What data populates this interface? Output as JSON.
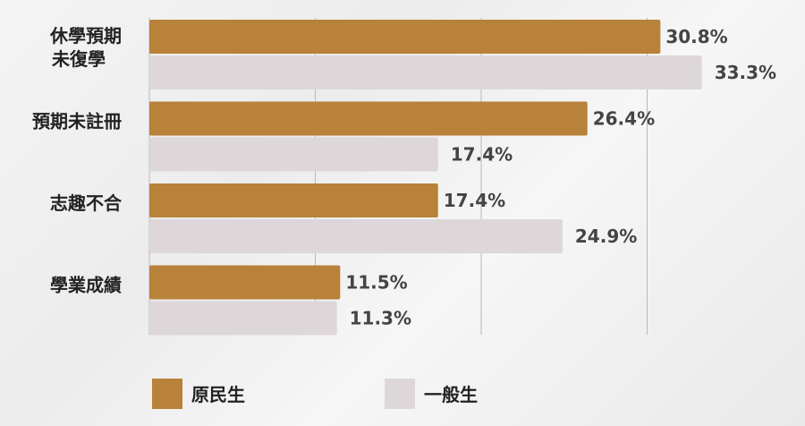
{
  "chart_data": {
    "type": "bar",
    "orientation": "horizontal",
    "categories": [
      [
        "休學預期",
        "未復學"
      ],
      [
        "預期未註冊"
      ],
      [
        "志趣不合"
      ],
      [
        "學業成績"
      ]
    ],
    "series": [
      {
        "name": "原民生",
        "values": [
          30.8,
          26.4,
          17.4,
          11.5
        ],
        "labels": [
          "30.8%",
          "26.4%",
          "17.4%",
          "11.5%"
        ],
        "color": "#b8823a"
      },
      {
        "name": "一般生",
        "values": [
          33.3,
          17.4,
          24.9,
          11.3
        ],
        "labels": [
          "33.3%",
          "17.4%",
          "24.9%",
          "11.3%"
        ],
        "color": "#ded7d9"
      }
    ],
    "xlim": [
      0,
      40
    ],
    "grid": true,
    "legend_position": "bottom"
  }
}
